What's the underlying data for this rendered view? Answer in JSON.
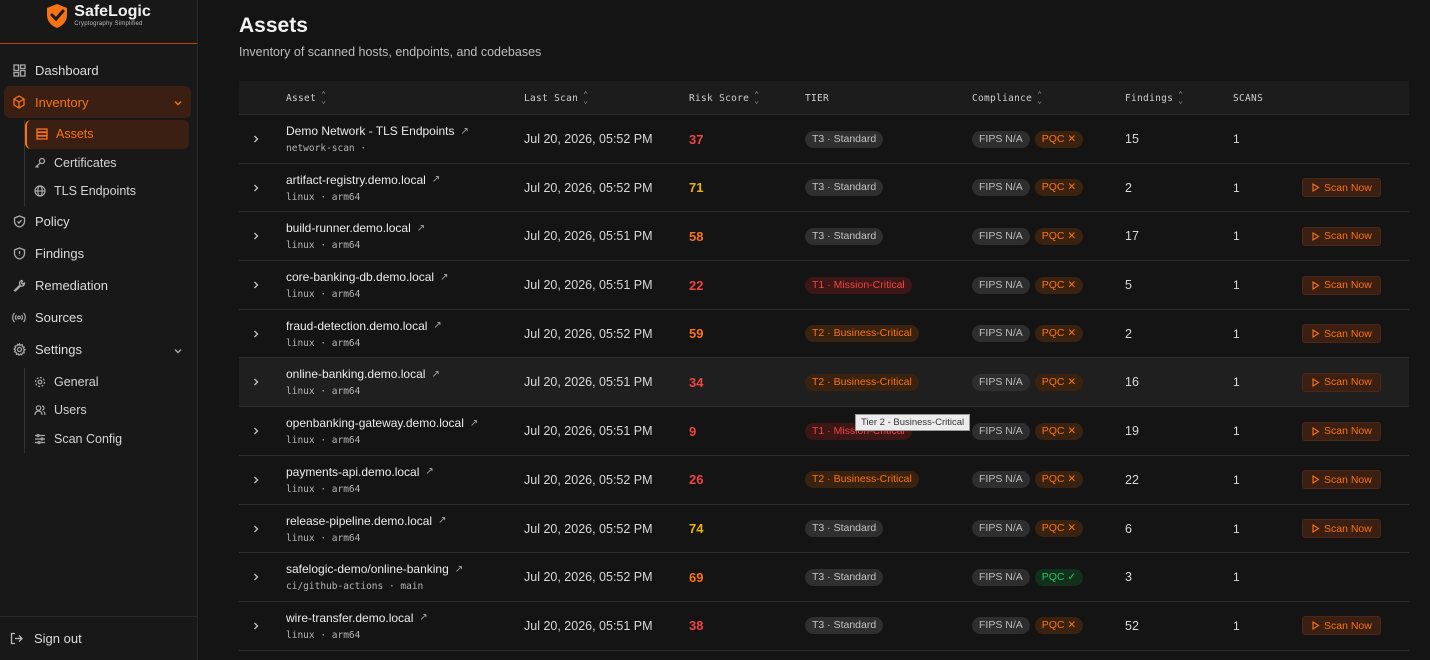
{
  "app": {
    "brand_name": "SafeLogic",
    "brand_tagline": "Cryptography Simplified",
    "accent": "#f97316"
  },
  "sidebar": {
    "items": [
      {
        "label": "Dashboard",
        "icon": "dashboard-icon"
      },
      {
        "label": "Inventory",
        "icon": "inventory-icon",
        "expanded": true
      },
      {
        "label": "Policy",
        "icon": "shield-icon"
      },
      {
        "label": "Findings",
        "icon": "shield-alert-icon"
      },
      {
        "label": "Remediation",
        "icon": "wrench-icon"
      },
      {
        "label": "Sources",
        "icon": "radio-icon"
      },
      {
        "label": "Settings",
        "icon": "gear-icon",
        "expanded": true
      }
    ],
    "inventory_sub": [
      {
        "label": "Assets",
        "icon": "list-icon",
        "active": true
      },
      {
        "label": "Certificates",
        "icon": "key-icon"
      },
      {
        "label": "TLS Endpoints",
        "icon": "globe-icon"
      }
    ],
    "settings_sub": [
      {
        "label": "General",
        "icon": "gear-icon"
      },
      {
        "label": "Users",
        "icon": "users-icon"
      },
      {
        "label": "Scan Config",
        "icon": "sliders-icon"
      }
    ],
    "signout": "Sign out"
  },
  "page": {
    "title": "Assets",
    "subtitle": "Inventory of scanned hosts, endpoints, and codebases"
  },
  "table": {
    "headers": {
      "asset": "Asset",
      "last_scan": "Last Scan",
      "risk": "Risk Score",
      "tier": "TIER",
      "compliance": "Compliance",
      "findings": "Findings",
      "scans": "SCANS"
    },
    "scan_now_label": "Scan Now",
    "rows": [
      {
        "name": "Demo Network - TLS Endpoints",
        "meta": "network-scan ·",
        "last_scan": "Jul 20, 2026, 05:52 PM",
        "risk": "37",
        "risk_color": "#ef4444",
        "tier": "T3 · Standard",
        "tier_kind": "standard",
        "fips": "FIPS N/A",
        "pqc": "PQC ✕",
        "pqc_ok": false,
        "findings": "15",
        "scans": "1",
        "scan_now": false
      },
      {
        "name": "artifact-registry.demo.local",
        "meta": "linux · arm64",
        "last_scan": "Jul 20, 2026, 05:52 PM",
        "risk": "71",
        "risk_color": "#eab308",
        "tier": "T3 · Standard",
        "tier_kind": "standard",
        "fips": "FIPS N/A",
        "pqc": "PQC ✕",
        "pqc_ok": false,
        "findings": "2",
        "scans": "1",
        "scan_now": true
      },
      {
        "name": "build-runner.demo.local",
        "meta": "linux · arm64",
        "last_scan": "Jul 20, 2026, 05:51 PM",
        "risk": "58",
        "risk_color": "#f97316",
        "tier": "T3 · Standard",
        "tier_kind": "standard",
        "fips": "FIPS N/A",
        "pqc": "PQC ✕",
        "pqc_ok": false,
        "findings": "17",
        "scans": "1",
        "scan_now": true
      },
      {
        "name": "core-banking-db.demo.local",
        "meta": "linux · arm64",
        "last_scan": "Jul 20, 2026, 05:51 PM",
        "risk": "22",
        "risk_color": "#ef4444",
        "tier": "T1 · Mission-Critical",
        "tier_kind": "mission",
        "fips": "FIPS N/A",
        "pqc": "PQC ✕",
        "pqc_ok": false,
        "findings": "5",
        "scans": "1",
        "scan_now": true
      },
      {
        "name": "fraud-detection.demo.local",
        "meta": "linux · arm64",
        "last_scan": "Jul 20, 2026, 05:52 PM",
        "risk": "59",
        "risk_color": "#f97316",
        "tier": "T2 · Business-Critical",
        "tier_kind": "business",
        "fips": "FIPS N/A",
        "pqc": "PQC ✕",
        "pqc_ok": false,
        "findings": "2",
        "scans": "1",
        "scan_now": true
      },
      {
        "name": "online-banking.demo.local",
        "meta": "linux · arm64",
        "last_scan": "Jul 20, 2026, 05:51 PM",
        "risk": "34",
        "risk_color": "#ef4444",
        "tier": "T2 · Business-Critical",
        "tier_kind": "business",
        "fips": "FIPS N/A",
        "pqc": "PQC ✕",
        "pqc_ok": false,
        "findings": "16",
        "scans": "1",
        "scan_now": true
      },
      {
        "name": "openbanking-gateway.demo.local",
        "meta": "linux · arm64",
        "last_scan": "Jul 20, 2026, 05:51 PM",
        "risk": "9",
        "risk_color": "#ef4444",
        "tier": "T1 · Mission-Critical",
        "tier_kind": "mission",
        "fips": "FIPS N/A",
        "pqc": "PQC ✕",
        "pqc_ok": false,
        "findings": "19",
        "scans": "1",
        "scan_now": true
      },
      {
        "name": "payments-api.demo.local",
        "meta": "linux · arm64",
        "last_scan": "Jul 20, 2026, 05:52 PM",
        "risk": "26",
        "risk_color": "#ef4444",
        "tier": "T2 · Business-Critical",
        "tier_kind": "business",
        "fips": "FIPS N/A",
        "pqc": "PQC ✕",
        "pqc_ok": false,
        "findings": "22",
        "scans": "1",
        "scan_now": true
      },
      {
        "name": "release-pipeline.demo.local",
        "meta": "linux · arm64",
        "last_scan": "Jul 20, 2026, 05:52 PM",
        "risk": "74",
        "risk_color": "#eab308",
        "tier": "T3 · Standard",
        "tier_kind": "standard",
        "fips": "FIPS N/A",
        "pqc": "PQC ✕",
        "pqc_ok": false,
        "findings": "6",
        "scans": "1",
        "scan_now": true
      },
      {
        "name": "safelogic-demo/online-banking",
        "meta": "ci/github-actions · main",
        "last_scan": "Jul 20, 2026, 05:52 PM",
        "risk": "69",
        "risk_color": "#f97316",
        "tier": "T3 · Standard",
        "tier_kind": "standard",
        "fips": "FIPS N/A",
        "pqc": "PQC ✓",
        "pqc_ok": true,
        "findings": "3",
        "scans": "1",
        "scan_now": false
      },
      {
        "name": "wire-transfer.demo.local",
        "meta": "linux · arm64",
        "last_scan": "Jul 20, 2026, 05:51 PM",
        "risk": "38",
        "risk_color": "#ef4444",
        "tier": "T3 · Standard",
        "tier_kind": "standard",
        "fips": "FIPS N/A",
        "pqc": "PQC ✕",
        "pqc_ok": false,
        "findings": "52",
        "scans": "1",
        "scan_now": true
      }
    ]
  },
  "tooltip": {
    "text": "Tier 2 - Business-Critical"
  }
}
